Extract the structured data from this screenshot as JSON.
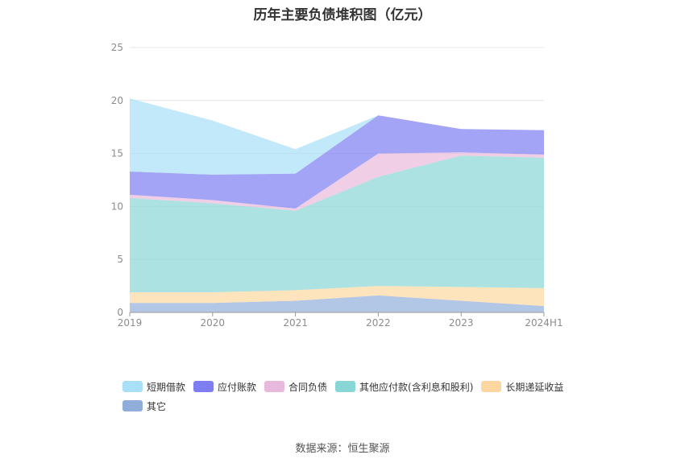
{
  "source_note": "数据来源：恒生聚源",
  "chart_data": {
    "type": "area",
    "stacked": true,
    "title": "历年主要负债堆积图（亿元）",
    "xlabel": "",
    "ylabel": "",
    "categories": [
      "2019",
      "2020",
      "2021",
      "2022",
      "2023",
      "2024H1"
    ],
    "ylim": [
      0,
      25
    ],
    "yticks": [
      0,
      5,
      10,
      15,
      20,
      25
    ],
    "grid": true,
    "legend_position": "bottom-left",
    "series": [
      {
        "name": "其它",
        "color": "#91aedb",
        "values": [
          0.9,
          0.9,
          1.1,
          1.6,
          1.1,
          0.6
        ]
      },
      {
        "name": "长期递延收益",
        "color": "#fcd8a0",
        "values": [
          1.0,
          1.0,
          1.0,
          0.9,
          1.3,
          1.7
        ]
      },
      {
        "name": "其他应付款(含利息和股利)",
        "color": "#8ad6d6",
        "values": [
          8.9,
          8.4,
          7.5,
          10.3,
          12.4,
          12.3
        ]
      },
      {
        "name": "合同负债",
        "color": "#e8b9dc",
        "values": [
          0.3,
          0.3,
          0.2,
          2.2,
          0.3,
          0.3
        ]
      },
      {
        "name": "应付账款",
        "color": "#7e7ef2",
        "values": [
          2.2,
          2.4,
          3.3,
          3.6,
          2.2,
          2.3
        ]
      },
      {
        "name": "短期借款",
        "color": "#a8e0f8",
        "values": [
          6.9,
          5.1,
          2.3,
          0.0,
          0.0,
          0.0
        ]
      }
    ],
    "legend_order": [
      "短期借款",
      "应付账款",
      "合同负债",
      "其他应付款(含利息和股利)",
      "长期递延收益",
      "其它"
    ]
  }
}
